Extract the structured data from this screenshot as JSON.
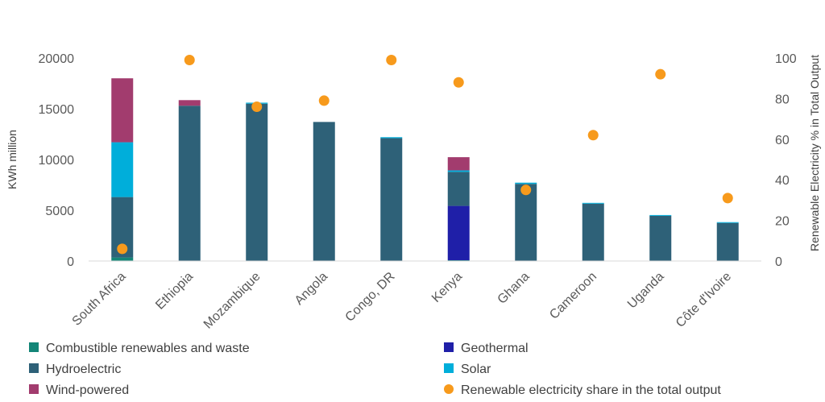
{
  "chart_data": {
    "type": "bar",
    "title": "",
    "categories": [
      "South Africa",
      "Ethiopia",
      "Mozambique",
      "Angola",
      "Congo, DR",
      "Kenya",
      "Ghana",
      "Cameroon",
      "Uganda",
      "Côte d'Ivoire"
    ],
    "series": [
      {
        "name": "Combustible renewables and waste",
        "color": "#138577",
        "axis": "left",
        "stack": true,
        "values": [
          350,
          0,
          0,
          0,
          0,
          80,
          0,
          0,
          0,
          0
        ]
      },
      {
        "name": "Geothermal",
        "color": "#1f1fa8",
        "axis": "left",
        "stack": true,
        "values": [
          0,
          0,
          0,
          0,
          0,
          5350,
          0,
          0,
          0,
          0
        ]
      },
      {
        "name": "Hydroelectric",
        "color": "#2e6178",
        "axis": "left",
        "stack": true,
        "values": [
          5950,
          15300,
          15500,
          13700,
          12100,
          3350,
          7600,
          5650,
          4450,
          3750
        ]
      },
      {
        "name": "Solar",
        "color": "#00aeda",
        "axis": "left",
        "stack": true,
        "values": [
          5400,
          0,
          100,
          0,
          100,
          150,
          120,
          80,
          80,
          80
        ]
      },
      {
        "name": "Wind-powered",
        "color": "#a23c6e",
        "axis": "left",
        "stack": true,
        "values": [
          6300,
          550,
          0,
          0,
          0,
          1300,
          0,
          0,
          0,
          0
        ]
      },
      {
        "name": "Renewable electricity share in the total output",
        "color": "#f79a1c",
        "axis": "right",
        "type": "scatter",
        "values": [
          6,
          99,
          76,
          79,
          99,
          88,
          35,
          62,
          92,
          31
        ]
      }
    ],
    "ylabel": "KWh million",
    "ylim": [
      0,
      20000
    ],
    "yticks": [
      0,
      5000,
      10000,
      15000,
      20000
    ],
    "y2label": "Renewable Electricity % in Total Output",
    "y2lim": [
      0,
      100
    ],
    "y2ticks": [
      0,
      20,
      40,
      60,
      80,
      100
    ],
    "legend_position": "bottom",
    "grid": false
  }
}
